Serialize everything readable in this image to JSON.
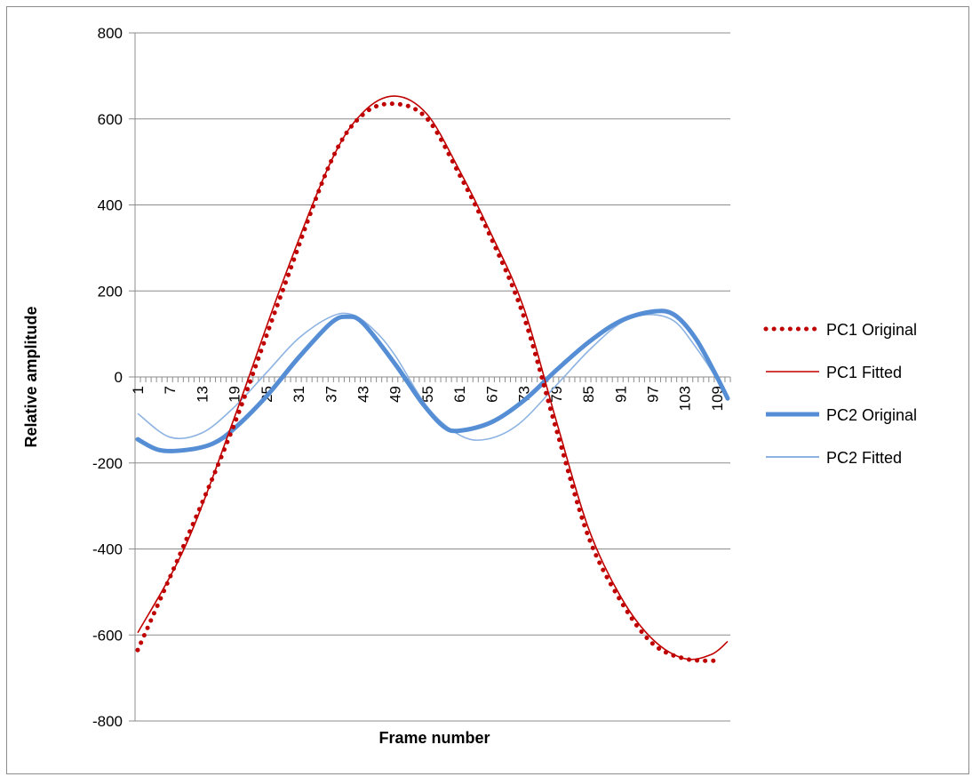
{
  "chart_data": {
    "type": "line",
    "title": "",
    "xlabel": "Frame number",
    "ylabel": "Relative amplitude",
    "x_range": [
      1,
      111
    ],
    "ylim": [
      -800,
      800
    ],
    "y_ticks": [
      800,
      600,
      400,
      200,
      0,
      -200,
      -400,
      -600,
      -800
    ],
    "x_tick_labels": [
      "1",
      "7",
      "13",
      "19",
      "25",
      "31",
      "37",
      "43",
      "49",
      "55",
      "61",
      "67",
      "73",
      "79",
      "85",
      "91",
      "97",
      "103",
      "109"
    ],
    "grid": "horizontal",
    "legend_position": "right",
    "series": [
      {
        "name": "PC1 Original",
        "style": "dotted",
        "color": "#c00000",
        "points": [
          [
            1,
            -635
          ],
          [
            10,
            -380
          ],
          [
            19,
            -110
          ],
          [
            28,
            200
          ],
          [
            37,
            500
          ],
          [
            43,
            610
          ],
          [
            49,
            635
          ],
          [
            55,
            600
          ],
          [
            61,
            470
          ],
          [
            67,
            320
          ],
          [
            73,
            140
          ],
          [
            79,
            -120
          ],
          [
            85,
            -370
          ],
          [
            91,
            -520
          ],
          [
            97,
            -620
          ],
          [
            103,
            -655
          ],
          [
            109,
            -660
          ]
        ]
      },
      {
        "name": "PC1 Fitted",
        "style": "solid-thin",
        "color": "#c00000",
        "points": [
          [
            1,
            -595
          ],
          [
            10,
            -390
          ],
          [
            19,
            -95
          ],
          [
            28,
            220
          ],
          [
            37,
            500
          ],
          [
            43,
            615
          ],
          [
            49,
            653
          ],
          [
            55,
            610
          ],
          [
            61,
            480
          ],
          [
            67,
            330
          ],
          [
            73,
            160
          ],
          [
            79,
            -100
          ],
          [
            85,
            -350
          ],
          [
            91,
            -510
          ],
          [
            97,
            -610
          ],
          [
            103,
            -655
          ],
          [
            108,
            -645
          ],
          [
            111,
            -615
          ]
        ]
      },
      {
        "name": "PC2 Original",
        "style": "solid-thick",
        "color": "#558ed5",
        "points": [
          [
            1,
            -145
          ],
          [
            5,
            -170
          ],
          [
            10,
            -170
          ],
          [
            15,
            -155
          ],
          [
            19,
            -120
          ],
          [
            25,
            -45
          ],
          [
            31,
            45
          ],
          [
            37,
            125
          ],
          [
            40,
            140
          ],
          [
            43,
            125
          ],
          [
            49,
            30
          ],
          [
            54,
            -60
          ],
          [
            58,
            -115
          ],
          [
            61,
            -125
          ],
          [
            67,
            -105
          ],
          [
            73,
            -55
          ],
          [
            79,
            15
          ],
          [
            85,
            80
          ],
          [
            91,
            130
          ],
          [
            97,
            152
          ],
          [
            101,
            145
          ],
          [
            105,
            90
          ],
          [
            109,
            0
          ],
          [
            111,
            -50
          ]
        ]
      },
      {
        "name": "PC2 Fitted",
        "style": "solid-thin",
        "color": "#8db3e2",
        "points": [
          [
            1,
            -85
          ],
          [
            7,
            -140
          ],
          [
            13,
            -130
          ],
          [
            19,
            -70
          ],
          [
            25,
            10
          ],
          [
            31,
            90
          ],
          [
            37,
            140
          ],
          [
            41,
            145
          ],
          [
            45,
            110
          ],
          [
            49,
            50
          ],
          [
            55,
            -70
          ],
          [
            61,
            -135
          ],
          [
            66,
            -145
          ],
          [
            72,
            -110
          ],
          [
            79,
            -20
          ],
          [
            85,
            60
          ],
          [
            91,
            125
          ],
          [
            96,
            145
          ],
          [
            101,
            130
          ],
          [
            105,
            70
          ],
          [
            109,
            -5
          ],
          [
            111,
            -50
          ]
        ]
      }
    ]
  }
}
